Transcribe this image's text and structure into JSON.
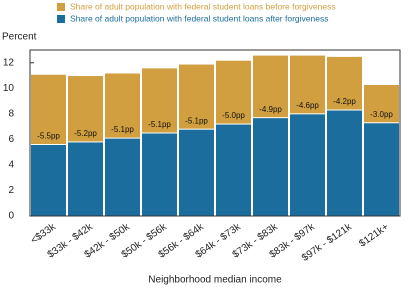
{
  "chart_data": {
    "type": "bar",
    "y_label": "Percent",
    "x_label": "Neighborhood median income",
    "categories": [
      "<$33k",
      "$33k - $42k",
      "$42k - $50k",
      "$50k - $56k",
      "$56k - $64k",
      "$64k - $73k",
      "$73k - $83k",
      "$83k - $97k",
      "$97k - $121k",
      "$121k+"
    ],
    "series": [
      {
        "name": "Share of adult population with federal student loans before forgiveness",
        "color": "#d19f3f",
        "values": [
          11.1,
          11.0,
          11.2,
          11.6,
          11.9,
          12.2,
          12.6,
          12.6,
          12.5,
          10.3
        ]
      },
      {
        "name": "Share of adult population with federal student loans after forgiveness",
        "color": "#1a6d9c",
        "values": [
          5.6,
          5.8,
          6.1,
          6.5,
          6.8,
          7.2,
          7.7,
          8.0,
          8.3,
          7.3
        ]
      }
    ],
    "data_labels": {
      "values": [
        -5.5,
        -5.2,
        -5.1,
        -5.1,
        -5.1,
        -5.0,
        -4.9,
        -4.6,
        -4.2,
        -3.0
      ],
      "value_labels": [
        "-5.5pp",
        "-5.2pp",
        "-5.1pp",
        "-5.1pp",
        "-5.1pp",
        "-5.0pp",
        "-4.9pp",
        "-4.6pp",
        "-4.2pp",
        "-3.0pp"
      ]
    },
    "ylim": [
      0,
      13
    ],
    "yticks": [
      0,
      2,
      4,
      6,
      8,
      10,
      12
    ]
  }
}
